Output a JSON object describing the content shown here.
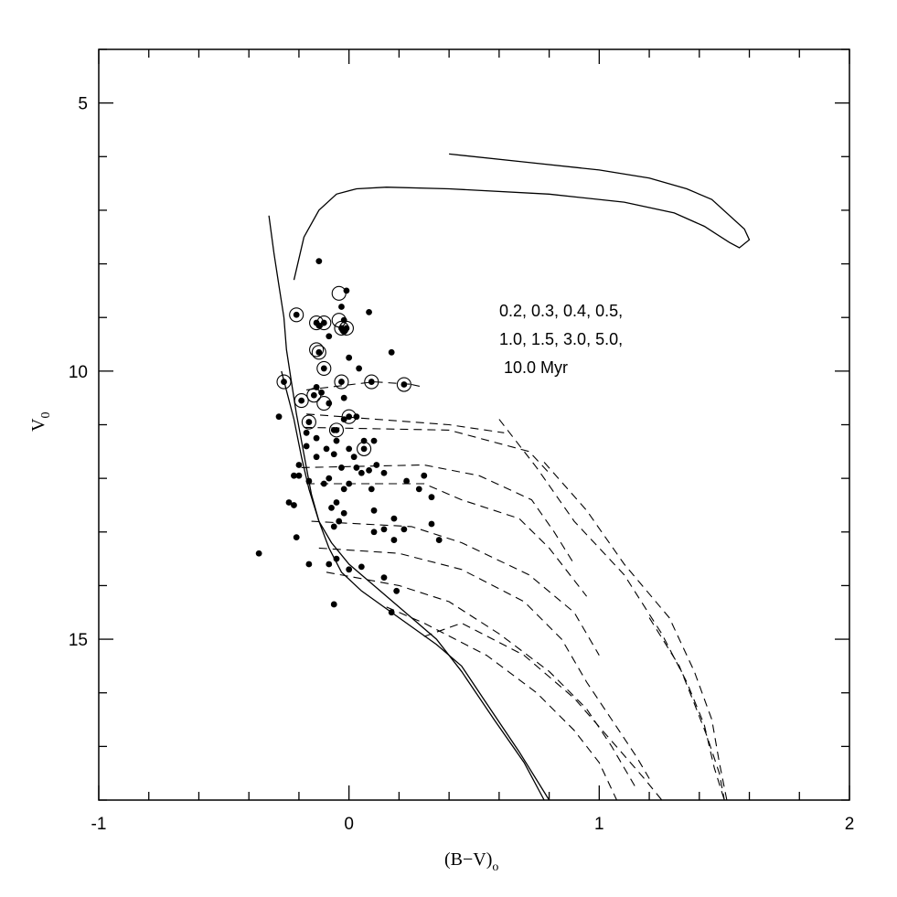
{
  "chart_data": {
    "type": "scatter",
    "title": "",
    "xlabel": "(B−V)",
    "xlabel_sub": "o",
    "ylabel": "V",
    "ylabel_sub": "0",
    "xlim": [
      -1,
      2
    ],
    "ylim": [
      18,
      4
    ],
    "y_inverted": true,
    "x_ticks": [
      -1,
      0,
      1,
      2
    ],
    "x_tick_labels": [
      "-1",
      "0",
      "1",
      "2"
    ],
    "y_ticks": [
      5,
      10,
      15
    ],
    "y_tick_labels": [
      "5",
      "10",
      "15"
    ],
    "grid": false,
    "annotation": [
      "0.2, 0.3, 0.4, 0.5,",
      "1.0, 1.5, 3.0, 5.0,",
      "10.0 Myr"
    ],
    "stars_filled": [
      [
        -0.12,
        7.95
      ],
      [
        -0.01,
        8.5
      ],
      [
        -0.03,
        8.8
      ],
      [
        0.08,
        8.9
      ],
      [
        -0.02,
        9.05
      ],
      [
        -0.12,
        9.15
      ],
      [
        -0.02,
        9.25
      ],
      [
        -0.08,
        9.35
      ],
      [
        0.17,
        9.65
      ],
      [
        0.0,
        9.75
      ],
      [
        0.04,
        9.95
      ],
      [
        -0.13,
        10.3
      ],
      [
        -0.11,
        10.4
      ],
      [
        -0.02,
        10.5
      ],
      [
        -0.08,
        10.6
      ],
      [
        -0.28,
        10.85
      ],
      [
        -0.02,
        10.9
      ],
      [
        0.03,
        10.85
      ],
      [
        -0.06,
        11.1
      ],
      [
        -0.17,
        11.15
      ],
      [
        -0.13,
        11.25
      ],
      [
        -0.05,
        11.3
      ],
      [
        0.06,
        11.3
      ],
      [
        0.1,
        11.3
      ],
      [
        -0.17,
        11.4
      ],
      [
        -0.09,
        11.45
      ],
      [
        0.0,
        11.45
      ],
      [
        -0.06,
        11.55
      ],
      [
        -0.13,
        11.6
      ],
      [
        0.02,
        11.6
      ],
      [
        -0.2,
        11.75
      ],
      [
        0.11,
        11.75
      ],
      [
        -0.03,
        11.8
      ],
      [
        0.03,
        11.8
      ],
      [
        0.08,
        11.85
      ],
      [
        -0.22,
        11.95
      ],
      [
        -0.2,
        11.95
      ],
      [
        0.05,
        11.9
      ],
      [
        0.14,
        11.9
      ],
      [
        0.3,
        11.95
      ],
      [
        -0.08,
        12.0
      ],
      [
        -0.16,
        12.05
      ],
      [
        0.0,
        12.1
      ],
      [
        0.23,
        12.05
      ],
      [
        -0.02,
        12.2
      ],
      [
        0.09,
        12.2
      ],
      [
        0.28,
        12.2
      ],
      [
        -0.1,
        12.1
      ],
      [
        0.33,
        12.35
      ],
      [
        -0.24,
        12.45
      ],
      [
        -0.05,
        12.45
      ],
      [
        -0.22,
        12.5
      ],
      [
        -0.07,
        12.55
      ],
      [
        0.1,
        12.6
      ],
      [
        -0.02,
        12.65
      ],
      [
        -0.04,
        12.8
      ],
      [
        0.18,
        12.75
      ],
      [
        0.33,
        12.85
      ],
      [
        -0.06,
        12.9
      ],
      [
        0.14,
        12.95
      ],
      [
        0.22,
        12.95
      ],
      [
        0.1,
        13.0
      ],
      [
        -0.21,
        13.1
      ],
      [
        0.18,
        13.15
      ],
      [
        0.36,
        13.15
      ],
      [
        -0.36,
        13.4
      ],
      [
        -0.05,
        13.5
      ],
      [
        -0.16,
        13.6
      ],
      [
        -0.08,
        13.6
      ],
      [
        0.05,
        13.65
      ],
      [
        0.0,
        13.7
      ],
      [
        0.14,
        13.85
      ],
      [
        0.19,
        14.1
      ],
      [
        -0.06,
        14.35
      ],
      [
        0.17,
        14.5
      ]
    ],
    "stars_circled_dot": [
      [
        -0.21,
        8.95
      ],
      [
        -0.13,
        9.1
      ],
      [
        -0.1,
        9.1
      ],
      [
        -0.03,
        9.2
      ],
      [
        -0.01,
        9.2
      ],
      [
        -0.12,
        9.65
      ],
      [
        -0.1,
        9.95
      ],
      [
        -0.26,
        10.2
      ],
      [
        -0.03,
        10.2
      ],
      [
        0.09,
        10.2
      ],
      [
        0.22,
        10.25
      ],
      [
        -0.14,
        10.45
      ],
      [
        -0.19,
        10.55
      ],
      [
        -0.16,
        10.95
      ],
      [
        0.0,
        10.85
      ],
      [
        -0.05,
        11.1
      ],
      [
        0.06,
        11.45
      ]
    ],
    "stars_open_circle": [
      [
        -0.04,
        8.55
      ],
      [
        -0.04,
        9.05
      ],
      [
        -0.13,
        9.6
      ],
      [
        -0.1,
        10.6
      ]
    ],
    "main_sequence": [
      [
        -0.32,
        7.1
      ],
      [
        -0.3,
        7.8
      ],
      [
        -0.28,
        8.4
      ],
      [
        -0.26,
        9.0
      ],
      [
        -0.25,
        9.6
      ],
      [
        -0.23,
        10.2
      ],
      [
        -0.21,
        10.8
      ],
      [
        -0.19,
        11.3
      ],
      [
        -0.17,
        11.8
      ],
      [
        -0.15,
        12.3
      ],
      [
        -0.12,
        12.8
      ],
      [
        -0.08,
        13.3
      ],
      [
        -0.03,
        13.75
      ],
      [
        0.05,
        14.1
      ],
      [
        0.2,
        14.6
      ],
      [
        0.35,
        15.1
      ],
      [
        0.45,
        15.5
      ],
      [
        0.55,
        16.2
      ],
      [
        0.68,
        17.1
      ],
      [
        0.8,
        18.0
      ]
    ],
    "main_sequence_2": [
      [
        -0.27,
        10.0
      ],
      [
        -0.22,
        10.9
      ],
      [
        -0.19,
        11.6
      ],
      [
        -0.16,
        12.2
      ],
      [
        -0.12,
        12.8
      ],
      [
        -0.07,
        13.2
      ],
      [
        0.0,
        13.6
      ],
      [
        0.1,
        14.0
      ],
      [
        0.25,
        14.6
      ],
      [
        0.35,
        15.0
      ],
      [
        0.45,
        15.6
      ],
      [
        0.58,
        16.5
      ],
      [
        0.7,
        17.3
      ],
      [
        0.78,
        18.0
      ]
    ],
    "evolved_track": [
      [
        -0.22,
        8.3
      ],
      [
        -0.18,
        7.5
      ],
      [
        -0.12,
        7.0
      ],
      [
        -0.05,
        6.7
      ],
      [
        0.03,
        6.6
      ],
      [
        0.15,
        6.57
      ],
      [
        0.4,
        6.6
      ],
      [
        0.8,
        6.7
      ],
      [
        1.1,
        6.85
      ],
      [
        1.3,
        7.05
      ],
      [
        1.42,
        7.3
      ],
      [
        1.52,
        7.6
      ],
      [
        1.56,
        7.7
      ],
      [
        1.6,
        7.55
      ],
      [
        1.58,
        7.35
      ],
      [
        1.45,
        6.8
      ],
      [
        1.35,
        6.6
      ],
      [
        1.2,
        6.4
      ],
      [
        1.0,
        6.25
      ],
      [
        0.7,
        6.1
      ],
      [
        0.4,
        5.95
      ]
    ],
    "isochrones": [
      [
        [
          0.25,
          10.25
        ],
        [
          0.3,
          10.3
        ]
      ],
      [
        [
          -0.17,
          10.35
        ],
        [
          0.1,
          10.2
        ],
        [
          0.26,
          10.25
        ]
      ],
      [
        [
          -0.17,
          10.8
        ],
        [
          0.4,
          11.0
        ],
        [
          0.62,
          11.15
        ]
      ],
      [
        [
          -0.18,
          11.05
        ],
        [
          0.4,
          11.1
        ],
        [
          0.72,
          11.5
        ],
        [
          0.8,
          11.9
        ]
      ],
      [
        [
          -0.19,
          11.8
        ],
        [
          0.3,
          11.75
        ],
        [
          0.52,
          11.95
        ],
        [
          0.73,
          12.4
        ],
        [
          0.82,
          13.0
        ],
        [
          0.9,
          13.6
        ]
      ],
      [
        [
          -0.17,
          12.1
        ],
        [
          0.3,
          12.1
        ],
        [
          0.45,
          12.4
        ],
        [
          0.68,
          12.75
        ],
        [
          0.8,
          13.3
        ],
        [
          0.95,
          14.2
        ]
      ],
      [
        [
          -0.15,
          12.8
        ],
        [
          0.25,
          12.9
        ],
        [
          0.45,
          13.2
        ],
        [
          0.72,
          13.8
        ],
        [
          0.9,
          14.5
        ],
        [
          1.0,
          15.3
        ]
      ],
      [
        [
          -0.12,
          13.3
        ],
        [
          0.2,
          13.4
        ],
        [
          0.45,
          13.7
        ],
        [
          0.7,
          14.3
        ],
        [
          0.85,
          15.0
        ],
        [
          0.95,
          15.8
        ],
        [
          1.05,
          16.5
        ],
        [
          1.15,
          17.2
        ],
        [
          1.2,
          17.6
        ]
      ],
      [
        [
          -0.09,
          13.75
        ],
        [
          0.2,
          14.0
        ],
        [
          0.4,
          14.3
        ],
        [
          0.6,
          14.9
        ],
        [
          0.8,
          15.6
        ],
        [
          0.95,
          16.3
        ],
        [
          1.05,
          17.0
        ],
        [
          1.15,
          17.8
        ]
      ],
      [
        [
          0.15,
          14.4
        ],
        [
          0.3,
          14.7
        ],
        [
          0.55,
          15.3
        ],
        [
          0.75,
          16.0
        ],
        [
          0.9,
          16.7
        ],
        [
          1.0,
          17.3
        ],
        [
          1.07,
          18.0
        ]
      ],
      [
        [
          0.3,
          14.95
        ],
        [
          0.45,
          14.7
        ],
        [
          0.7,
          15.3
        ],
        [
          0.9,
          16.1
        ],
        [
          1.05,
          16.9
        ],
        [
          1.18,
          17.6
        ],
        [
          1.25,
          18.0
        ]
      ],
      [
        [
          0.6,
          10.9
        ],
        [
          0.75,
          11.8
        ],
        [
          0.9,
          12.8
        ],
        [
          1.1,
          13.8
        ],
        [
          1.25,
          14.9
        ],
        [
          1.35,
          15.8
        ],
        [
          1.42,
          16.6
        ],
        [
          1.46,
          17.4
        ],
        [
          1.5,
          18.0
        ]
      ],
      [
        [
          0.78,
          11.7
        ],
        [
          0.95,
          12.6
        ],
        [
          1.1,
          13.6
        ],
        [
          1.28,
          14.6
        ],
        [
          1.38,
          15.6
        ],
        [
          1.45,
          16.5
        ],
        [
          1.48,
          17.3
        ],
        [
          1.51,
          18.0
        ]
      ],
      [
        [
          1.2,
          14.6
        ],
        [
          1.32,
          15.5
        ],
        [
          1.38,
          16.2
        ],
        [
          1.43,
          16.8
        ],
        [
          1.48,
          17.5
        ],
        [
          1.5,
          18.0
        ]
      ]
    ]
  }
}
